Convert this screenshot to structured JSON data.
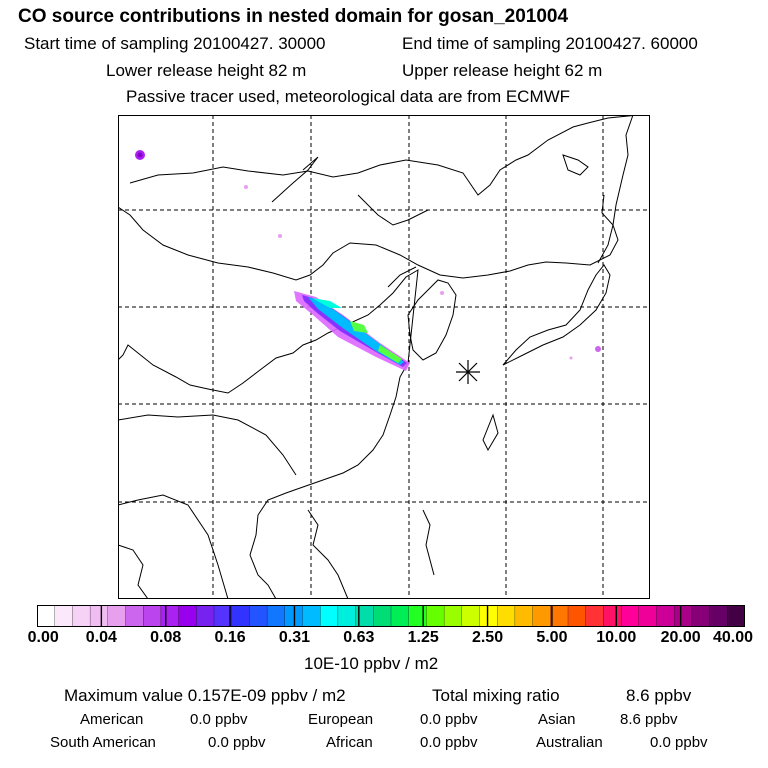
{
  "header": {
    "title": "CO  source contributions in nested domain for gosan_201004",
    "start_label": "Start time of sampling 20100427. 30000",
    "end_label": "End time of sampling 20100427. 60000",
    "lower_label": "Lower release height   82 m",
    "upper_label": "Upper release height   62 m",
    "tracer_note": "Passive tracer used, meteorological data are from ECMWF"
  },
  "colorbar": {
    "ticks": [
      "0.00",
      "0.04",
      "0.08",
      "0.16",
      "0.31",
      "0.63",
      "1.25",
      "2.50",
      "5.00",
      "10.00",
      "20.00",
      "40.00"
    ],
    "unit": "10E-10 ppbv / m2",
    "colors": [
      "#ffffff",
      "#fbe9fb",
      "#f6d2f6",
      "#f0bdf2",
      "#e6a0ee",
      "#cc66ee",
      "#bb44ee",
      "#aa22f0",
      "#9900ee",
      "#7722ee",
      "#5533ff",
      "#3333ff",
      "#2255ff",
      "#1177ff",
      "#0099ff",
      "#00bbff",
      "#00ffff",
      "#00eedd",
      "#00ddaa",
      "#00dd77",
      "#00ee55",
      "#22ff22",
      "#66ff00",
      "#99ff00",
      "#ccff00",
      "#ffff00",
      "#ffdd00",
      "#ffbb00",
      "#ff9900",
      "#ff7700",
      "#ff5500",
      "#ff3333",
      "#ff1166",
      "#ff0099",
      "#ee0099",
      "#cc0099",
      "#aa0088",
      "#880077",
      "#660066",
      "#440044"
    ]
  },
  "stats": {
    "max_label": "Maximum value  0.157E-09 ppbv / m2",
    "total_label": "Total mixing ratio",
    "total_value": "8.6 ppbv",
    "regions": [
      {
        "name": "American",
        "value": "0.0 ppbv"
      },
      {
        "name": "European",
        "value": "0.0 ppbv"
      },
      {
        "name": "Asian",
        "value": "8.6 ppbv"
      },
      {
        "name": "South American",
        "value": "0.0 ppbv"
      },
      {
        "name": "African",
        "value": "0.0 ppbv"
      },
      {
        "name": "Australian",
        "value": "0.0 ppbv"
      }
    ]
  },
  "map": {
    "receptor_marker": "asterisk-marker",
    "plume_colors": [
      "#dd66ff",
      "#8833ff",
      "#00bbff",
      "#00ffdd",
      "#55ff44"
    ]
  }
}
